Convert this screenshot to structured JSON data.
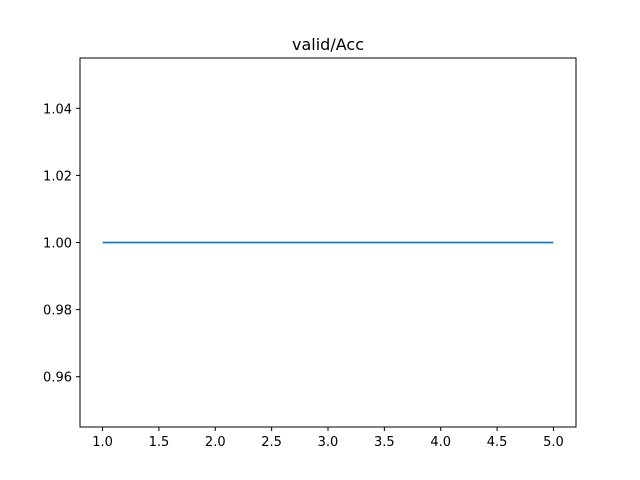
{
  "chart_data": {
    "type": "line",
    "title": "valid/Acc",
    "xlabel": "",
    "ylabel": "",
    "x": [
      1,
      2,
      3,
      4,
      5
    ],
    "series": [
      {
        "values": [
          1.0,
          1.0,
          1.0,
          1.0,
          1.0
        ],
        "color": "#1f77b4"
      }
    ],
    "xlim": [
      0.8,
      5.2
    ],
    "ylim": [
      0.945,
      1.055
    ],
    "xticks": [
      1.0,
      1.5,
      2.0,
      2.5,
      3.0,
      3.5,
      4.0,
      4.5,
      5.0
    ],
    "xtick_labels": [
      "1.0",
      "1.5",
      "2.0",
      "2.5",
      "3.0",
      "3.5",
      "4.0",
      "4.5",
      "5.0"
    ],
    "yticks": [
      0.96,
      0.98,
      1.0,
      1.02,
      1.04
    ],
    "ytick_labels": [
      "0.96",
      "0.98",
      "1.00",
      "1.02",
      "1.04"
    ],
    "grid": false,
    "legend": "none"
  }
}
